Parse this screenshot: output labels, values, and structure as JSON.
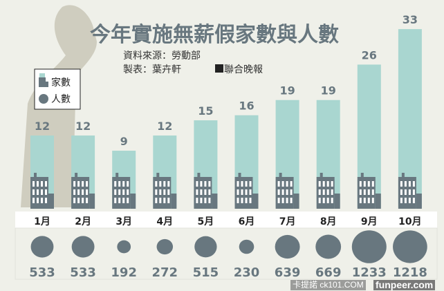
{
  "chart_data": {
    "type": "bar",
    "title": "今年實施無薪假家數與人數",
    "source": "資料來源：勞動部",
    "maker": "製表：葉卉軒",
    "publisher": "聯合晚報",
    "legend": [
      {
        "label": "家數",
        "icon": "building-icon"
      },
      {
        "label": "人數",
        "icon": "circle-icon"
      }
    ],
    "legend_placement": "left",
    "categories": [
      "1月",
      "2月",
      "3月",
      "4月",
      "5月",
      "6月",
      "7月",
      "8月",
      "9月",
      "10月"
    ],
    "series": [
      {
        "name": "家數",
        "values": [
          12,
          12,
          9,
          12,
          15,
          16,
          19,
          19,
          26,
          33
        ]
      },
      {
        "name": "人數",
        "values": [
          533,
          533,
          192,
          272,
          515,
          230,
          639,
          669,
          1233,
          1218
        ]
      }
    ],
    "colors": {
      "bar": "#a9d6d0",
      "gray": "#68777f",
      "bg": "#eff0e9",
      "silhouette": "#cfcdbf"
    }
  },
  "watermark": {
    "line1": "卡提諾 ck101.COM",
    "line2": "funpeer.com"
  }
}
